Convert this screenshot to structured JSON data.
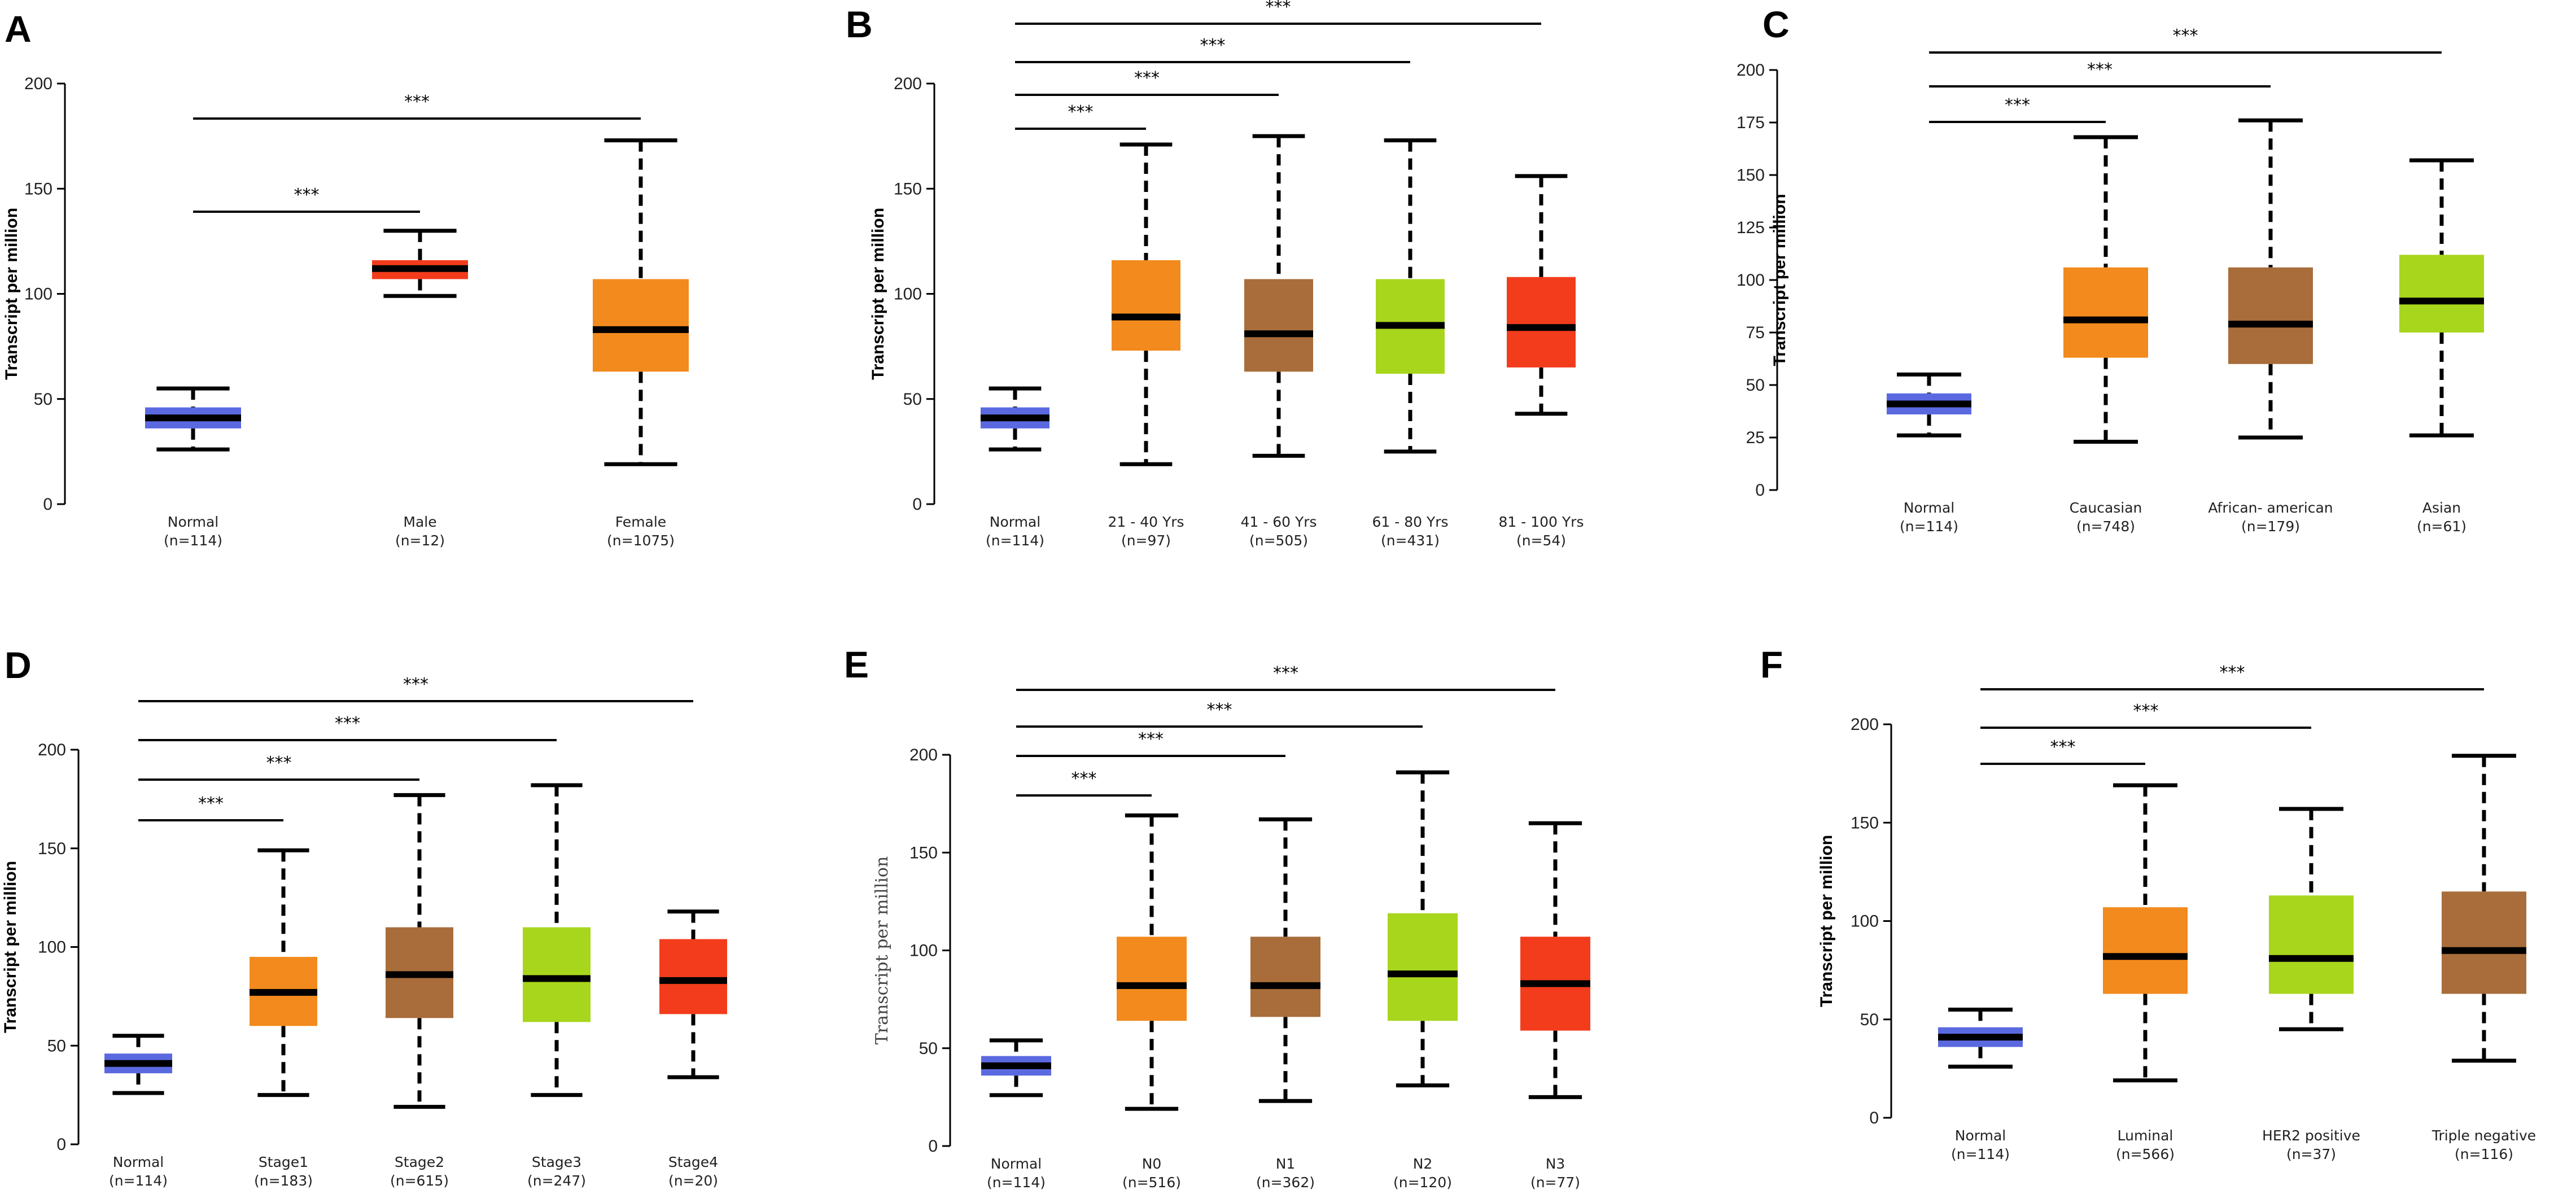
{
  "chart_data": [
    {
      "panel": "A",
      "type": "boxplot",
      "ylabel": "Transcript per million",
      "ylim": [
        0,
        200
      ],
      "yticks": [
        0,
        50,
        100,
        150,
        200
      ],
      "categories": [
        "Normal",
        "Male",
        "Female"
      ],
      "n_labels": [
        "(n=114)",
        "(n=12)",
        "(n=1075)"
      ],
      "colors": [
        "#5b69e0",
        "#f23c1c",
        "#f28a1d"
      ],
      "boxes": [
        {
          "min": 26,
          "q1": 36,
          "median": 41,
          "q3": 46,
          "max": 55
        },
        {
          "min": 99,
          "q1": 107,
          "median": 112,
          "q3": 116,
          "max": 130
        },
        {
          "min": 19,
          "q1": 63,
          "median": 83,
          "q3": 107,
          "max": 173
        }
      ],
      "significance": [
        {
          "from": 0,
          "to": 1,
          "label": "***"
        },
        {
          "from": 0,
          "to": 2,
          "label": "***"
        }
      ]
    },
    {
      "panel": "B",
      "type": "boxplot",
      "ylabel": "Transcript per million",
      "ylim": [
        0,
        200
      ],
      "yticks": [
        0,
        50,
        100,
        150,
        200
      ],
      "categories": [
        "Normal",
        "21 - 40 Yrs",
        "41 - 60 Yrs",
        "61 - 80 Yrs",
        "81 - 100 Yrs"
      ],
      "n_labels": [
        "(n=114)",
        "(n=97)",
        "(n=505)",
        "(n=431)",
        "(n=54)"
      ],
      "colors": [
        "#5b69e0",
        "#f28a1d",
        "#a86d3a",
        "#a8d61c",
        "#f23c1c"
      ],
      "boxes": [
        {
          "min": 26,
          "q1": 36,
          "median": 41,
          "q3": 46,
          "max": 55
        },
        {
          "min": 19,
          "q1": 73,
          "median": 89,
          "q3": 116,
          "max": 171
        },
        {
          "min": 23,
          "q1": 63,
          "median": 81,
          "q3": 107,
          "max": 175
        },
        {
          "min": 25,
          "q1": 62,
          "median": 85,
          "q3": 107,
          "max": 173
        },
        {
          "min": 43,
          "q1": 65,
          "median": 84,
          "q3": 108,
          "max": 156
        }
      ],
      "significance": [
        {
          "from": 0,
          "to": 1,
          "label": "***"
        },
        {
          "from": 0,
          "to": 2,
          "label": "***"
        },
        {
          "from": 0,
          "to": 3,
          "label": "***"
        },
        {
          "from": 0,
          "to": 4,
          "label": "***"
        }
      ]
    },
    {
      "panel": "C",
      "type": "boxplot",
      "ylabel": "Transcript per million",
      "ylim": [
        0,
        200
      ],
      "yticks": [
        0,
        25,
        50,
        75,
        100,
        125,
        150,
        175,
        200
      ],
      "categories": [
        "Normal",
        "Caucasian",
        "African- american",
        "Asian"
      ],
      "n_labels": [
        "(n=114)",
        "(n=748)",
        "(n=179)",
        "(n=61)"
      ],
      "colors": [
        "#5b69e0",
        "#f28a1d",
        "#a86d3a",
        "#a8d61c"
      ],
      "boxes": [
        {
          "min": 26,
          "q1": 36,
          "median": 41,
          "q3": 46,
          "max": 55
        },
        {
          "min": 23,
          "q1": 63,
          "median": 81,
          "q3": 106,
          "max": 168
        },
        {
          "min": 25,
          "q1": 60,
          "median": 79,
          "q3": 106,
          "max": 176
        },
        {
          "min": 26,
          "q1": 75,
          "median": 90,
          "q3": 112,
          "max": 157
        }
      ],
      "significance": [
        {
          "from": 0,
          "to": 1,
          "label": "***"
        },
        {
          "from": 0,
          "to": 2,
          "label": "***"
        },
        {
          "from": 0,
          "to": 3,
          "label": "***"
        }
      ]
    },
    {
      "panel": "D",
      "type": "boxplot",
      "ylabel": "Transcript per million",
      "ylim": [
        0,
        200
      ],
      "yticks": [
        0,
        50,
        100,
        150,
        200
      ],
      "categories": [
        "Normal",
        "Stage1",
        "Stage2",
        "Stage3",
        "Stage4"
      ],
      "n_labels": [
        "(n=114)",
        "(n=183)",
        "(n=615)",
        "(n=247)",
        "(n=20)"
      ],
      "colors": [
        "#5b69e0",
        "#f28a1d",
        "#a86d3a",
        "#a8d61c",
        "#f23c1c"
      ],
      "boxes": [
        {
          "min": 26,
          "q1": 36,
          "median": 41,
          "q3": 46,
          "max": 55
        },
        {
          "min": 25,
          "q1": 60,
          "median": 77,
          "q3": 95,
          "max": 149
        },
        {
          "min": 19,
          "q1": 64,
          "median": 86,
          "q3": 110,
          "max": 177
        },
        {
          "min": 25,
          "q1": 62,
          "median": 84,
          "q3": 110,
          "max": 182
        },
        {
          "min": 34,
          "q1": 66,
          "median": 83,
          "q3": 104,
          "max": 118
        }
      ],
      "significance": [
        {
          "from": 0,
          "to": 1,
          "label": "***"
        },
        {
          "from": 0,
          "to": 2,
          "label": "***"
        },
        {
          "from": 0,
          "to": 3,
          "label": "***"
        },
        {
          "from": 0,
          "to": 4,
          "label": "***"
        }
      ]
    },
    {
      "panel": "E",
      "type": "boxplot",
      "ylabel": "Transcript per million",
      "ylim": [
        0,
        200
      ],
      "yticks": [
        0,
        50,
        100,
        150,
        200
      ],
      "categories": [
        "Normal",
        "N0",
        "N1",
        "N2",
        "N3"
      ],
      "n_labels": [
        "(n=114)",
        "(n=516)",
        "(n=362)",
        "(n=120)",
        "(n=77)"
      ],
      "colors": [
        "#5b69e0",
        "#f28a1d",
        "#a86d3a",
        "#a8d61c",
        "#f23c1c"
      ],
      "boxes": [
        {
          "min": 26,
          "q1": 36,
          "median": 41,
          "q3": 46,
          "max": 54
        },
        {
          "min": 19,
          "q1": 64,
          "median": 82,
          "q3": 107,
          "max": 169
        },
        {
          "min": 23,
          "q1": 66,
          "median": 82,
          "q3": 107,
          "max": 167
        },
        {
          "min": 31,
          "q1": 64,
          "median": 88,
          "q3": 119,
          "max": 191
        },
        {
          "min": 25,
          "q1": 59,
          "median": 83,
          "q3": 107,
          "max": 165
        }
      ],
      "significance": [
        {
          "from": 0,
          "to": 1,
          "label": "***"
        },
        {
          "from": 0,
          "to": 2,
          "label": "***"
        },
        {
          "from": 0,
          "to": 3,
          "label": "***"
        },
        {
          "from": 0,
          "to": 4,
          "label": "***"
        }
      ]
    },
    {
      "panel": "F",
      "type": "boxplot",
      "ylabel": "Transcript per million",
      "ylim": [
        0,
        200
      ],
      "yticks": [
        0,
        50,
        100,
        150,
        200
      ],
      "categories": [
        "Normal",
        "Luminal",
        "HER2 positive",
        "Triple negative"
      ],
      "n_labels": [
        "(n=114)",
        "(n=566)",
        "(n=37)",
        "(n=116)"
      ],
      "colors": [
        "#5b69e0",
        "#f28a1d",
        "#a8d61c",
        "#a86d3a"
      ],
      "boxes": [
        {
          "min": 26,
          "q1": 36,
          "median": 41,
          "q3": 46,
          "max": 55
        },
        {
          "min": 19,
          "q1": 63,
          "median": 82,
          "q3": 107,
          "max": 169
        },
        {
          "min": 45,
          "q1": 63,
          "median": 81,
          "q3": 113,
          "max": 157
        },
        {
          "min": 29,
          "q1": 63,
          "median": 85,
          "q3": 115,
          "max": 184
        }
      ],
      "significance": [
        {
          "from": 0,
          "to": 1,
          "label": "***"
        },
        {
          "from": 0,
          "to": 2,
          "label": "***"
        },
        {
          "from": 0,
          "to": 3,
          "label": "***"
        }
      ]
    }
  ]
}
